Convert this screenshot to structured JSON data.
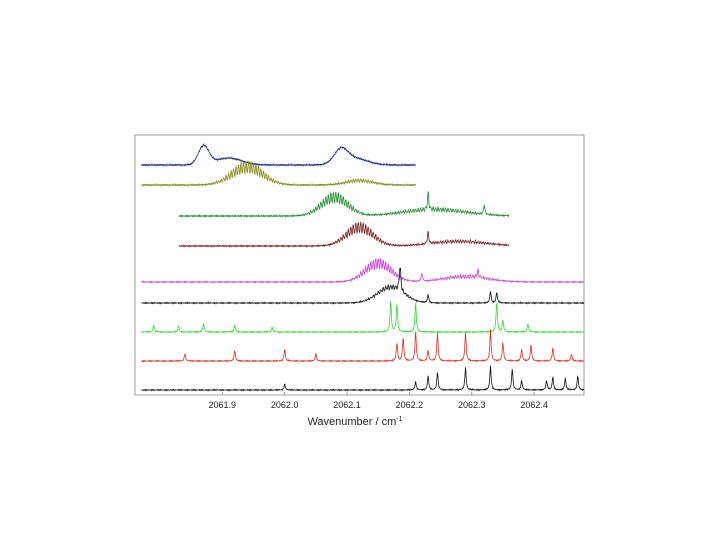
{
  "chart_data": {
    "type": "line",
    "title": "",
    "xlabel": "Wavenumber / cm",
    "xlabel_superscript": "-1",
    "ylabel": "",
    "xlim": [
      2061.76,
      2062.48
    ],
    "xticks": [
      2061.9,
      2062.0,
      2062.1,
      2062.2,
      2062.3,
      2062.4
    ],
    "xtick_labels": [
      "2061.9",
      "2062.0",
      "2062.1",
      "2062.2",
      "2062.3",
      "2062.4"
    ],
    "grid": false,
    "legend": "none",
    "y_scale": "stacked traces with vertical offset, no y axis values",
    "series": [
      {
        "color": "#1f2f8a",
        "x_range": [
          2061.77,
          2062.21
        ],
        "envelope": [
          {
            "center": 2061.87,
            "width": 0.012,
            "amp": 0.8
          },
          {
            "center": 2061.91,
            "width": 0.03,
            "amp": 0.3
          },
          {
            "center": 2062.09,
            "width": 0.015,
            "amp": 0.55
          },
          {
            "center": 2062.11,
            "width": 0.03,
            "amp": 0.3
          }
        ],
        "osc_amp": 0.06
      },
      {
        "color": "#8a8a16",
        "x_range": [
          2061.77,
          2062.21
        ],
        "envelope": [
          {
            "center": 2061.94,
            "width": 0.035,
            "amp": 1.0
          },
          {
            "center": 2062.12,
            "width": 0.03,
            "amp": 0.25
          }
        ],
        "osc_amp": 0.5
      },
      {
        "color": "#1f8f2f",
        "x_range": [
          2061.83,
          2062.36
        ],
        "envelope": [
          {
            "center": 2062.08,
            "width": 0.03,
            "amp": 1.0
          },
          {
            "center": 2062.24,
            "width": 0.07,
            "amp": 0.35
          }
        ],
        "peaks": [
          {
            "x": 2062.23,
            "amp": 0.7
          },
          {
            "x": 2062.32,
            "amp": 0.4
          }
        ],
        "osc_amp": 0.45
      },
      {
        "color": "#7a1f1f",
        "x_range": [
          2061.83,
          2062.36
        ],
        "envelope": [
          {
            "center": 2062.12,
            "width": 0.03,
            "amp": 1.0
          },
          {
            "center": 2062.28,
            "width": 0.06,
            "amp": 0.25
          }
        ],
        "peaks": [
          {
            "x": 2062.23,
            "amp": 0.5
          }
        ],
        "osc_amp": 0.45
      },
      {
        "color": "#cc3fd6",
        "x_range": [
          2061.77,
          2062.48
        ],
        "envelope": [
          {
            "center": 2062.15,
            "width": 0.03,
            "amp": 1.0
          },
          {
            "center": 2062.29,
            "width": 0.05,
            "amp": 0.3
          }
        ],
        "peaks": [
          {
            "x": 2062.22,
            "amp": 0.35
          },
          {
            "x": 2062.31,
            "amp": 0.3
          }
        ],
        "osc_amp": 0.45
      },
      {
        "color": "#111111",
        "x_range": [
          2061.77,
          2062.48
        ],
        "envelope": [
          {
            "center": 2062.17,
            "width": 0.03,
            "amp": 0.75
          }
        ],
        "peaks": [
          {
            "x": 2062.185,
            "amp": 1.3
          },
          {
            "x": 2062.23,
            "amp": 0.35
          },
          {
            "x": 2062.33,
            "amp": 0.5
          },
          {
            "x": 2062.34,
            "amp": 0.45
          }
        ],
        "osc_amp": 0.25
      },
      {
        "color": "#33dd33",
        "x_range": [
          2061.77,
          2062.48
        ],
        "envelope": [],
        "peaks": [
          {
            "x": 2061.79,
            "amp": 0.3
          },
          {
            "x": 2061.83,
            "amp": 0.25
          },
          {
            "x": 2061.87,
            "amp": 0.35
          },
          {
            "x": 2061.92,
            "amp": 0.3
          },
          {
            "x": 2061.98,
            "amp": 0.2
          },
          {
            "x": 2062.17,
            "amp": 1.3
          },
          {
            "x": 2062.18,
            "amp": 1.2
          },
          {
            "x": 2062.21,
            "amp": 1.25
          },
          {
            "x": 2062.34,
            "amp": 1.3
          },
          {
            "x": 2062.35,
            "amp": 0.5
          },
          {
            "x": 2062.39,
            "amp": 0.35
          }
        ],
        "osc_amp": 0.03
      },
      {
        "color": "#dd3322",
        "x_range": [
          2061.77,
          2062.48
        ],
        "envelope": [],
        "peaks": [
          {
            "x": 2061.84,
            "amp": 0.3
          },
          {
            "x": 2061.92,
            "amp": 0.45
          },
          {
            "x": 2062.0,
            "amp": 0.5
          },
          {
            "x": 2062.05,
            "amp": 0.3
          },
          {
            "x": 2062.18,
            "amp": 0.75
          },
          {
            "x": 2062.19,
            "amp": 1.0
          },
          {
            "x": 2062.21,
            "amp": 1.25
          },
          {
            "x": 2062.23,
            "amp": 0.45
          },
          {
            "x": 2062.245,
            "amp": 1.2
          },
          {
            "x": 2062.29,
            "amp": 1.2
          },
          {
            "x": 2062.33,
            "amp": 1.3
          },
          {
            "x": 2062.35,
            "amp": 0.8
          },
          {
            "x": 2062.38,
            "amp": 0.5
          },
          {
            "x": 2062.395,
            "amp": 0.7
          },
          {
            "x": 2062.43,
            "amp": 0.55
          },
          {
            "x": 2062.46,
            "amp": 0.3
          }
        ],
        "osc_amp": 0.03
      },
      {
        "color": "#111111",
        "x_range": [
          2061.77,
          2062.48
        ],
        "envelope": [],
        "peaks": [
          {
            "x": 2062.0,
            "amp": 0.25
          },
          {
            "x": 2062.21,
            "amp": 0.35
          },
          {
            "x": 2062.23,
            "amp": 0.6
          },
          {
            "x": 2062.245,
            "amp": 0.75
          },
          {
            "x": 2062.29,
            "amp": 0.95
          },
          {
            "x": 2062.33,
            "amp": 1.0
          },
          {
            "x": 2062.365,
            "amp": 0.9
          },
          {
            "x": 2062.38,
            "amp": 0.4
          },
          {
            "x": 2062.42,
            "amp": 0.4
          },
          {
            "x": 2062.43,
            "amp": 0.55
          },
          {
            "x": 2062.45,
            "amp": 0.5
          },
          {
            "x": 2062.47,
            "amp": 0.6
          }
        ],
        "osc_amp": 0.03
      }
    ]
  }
}
